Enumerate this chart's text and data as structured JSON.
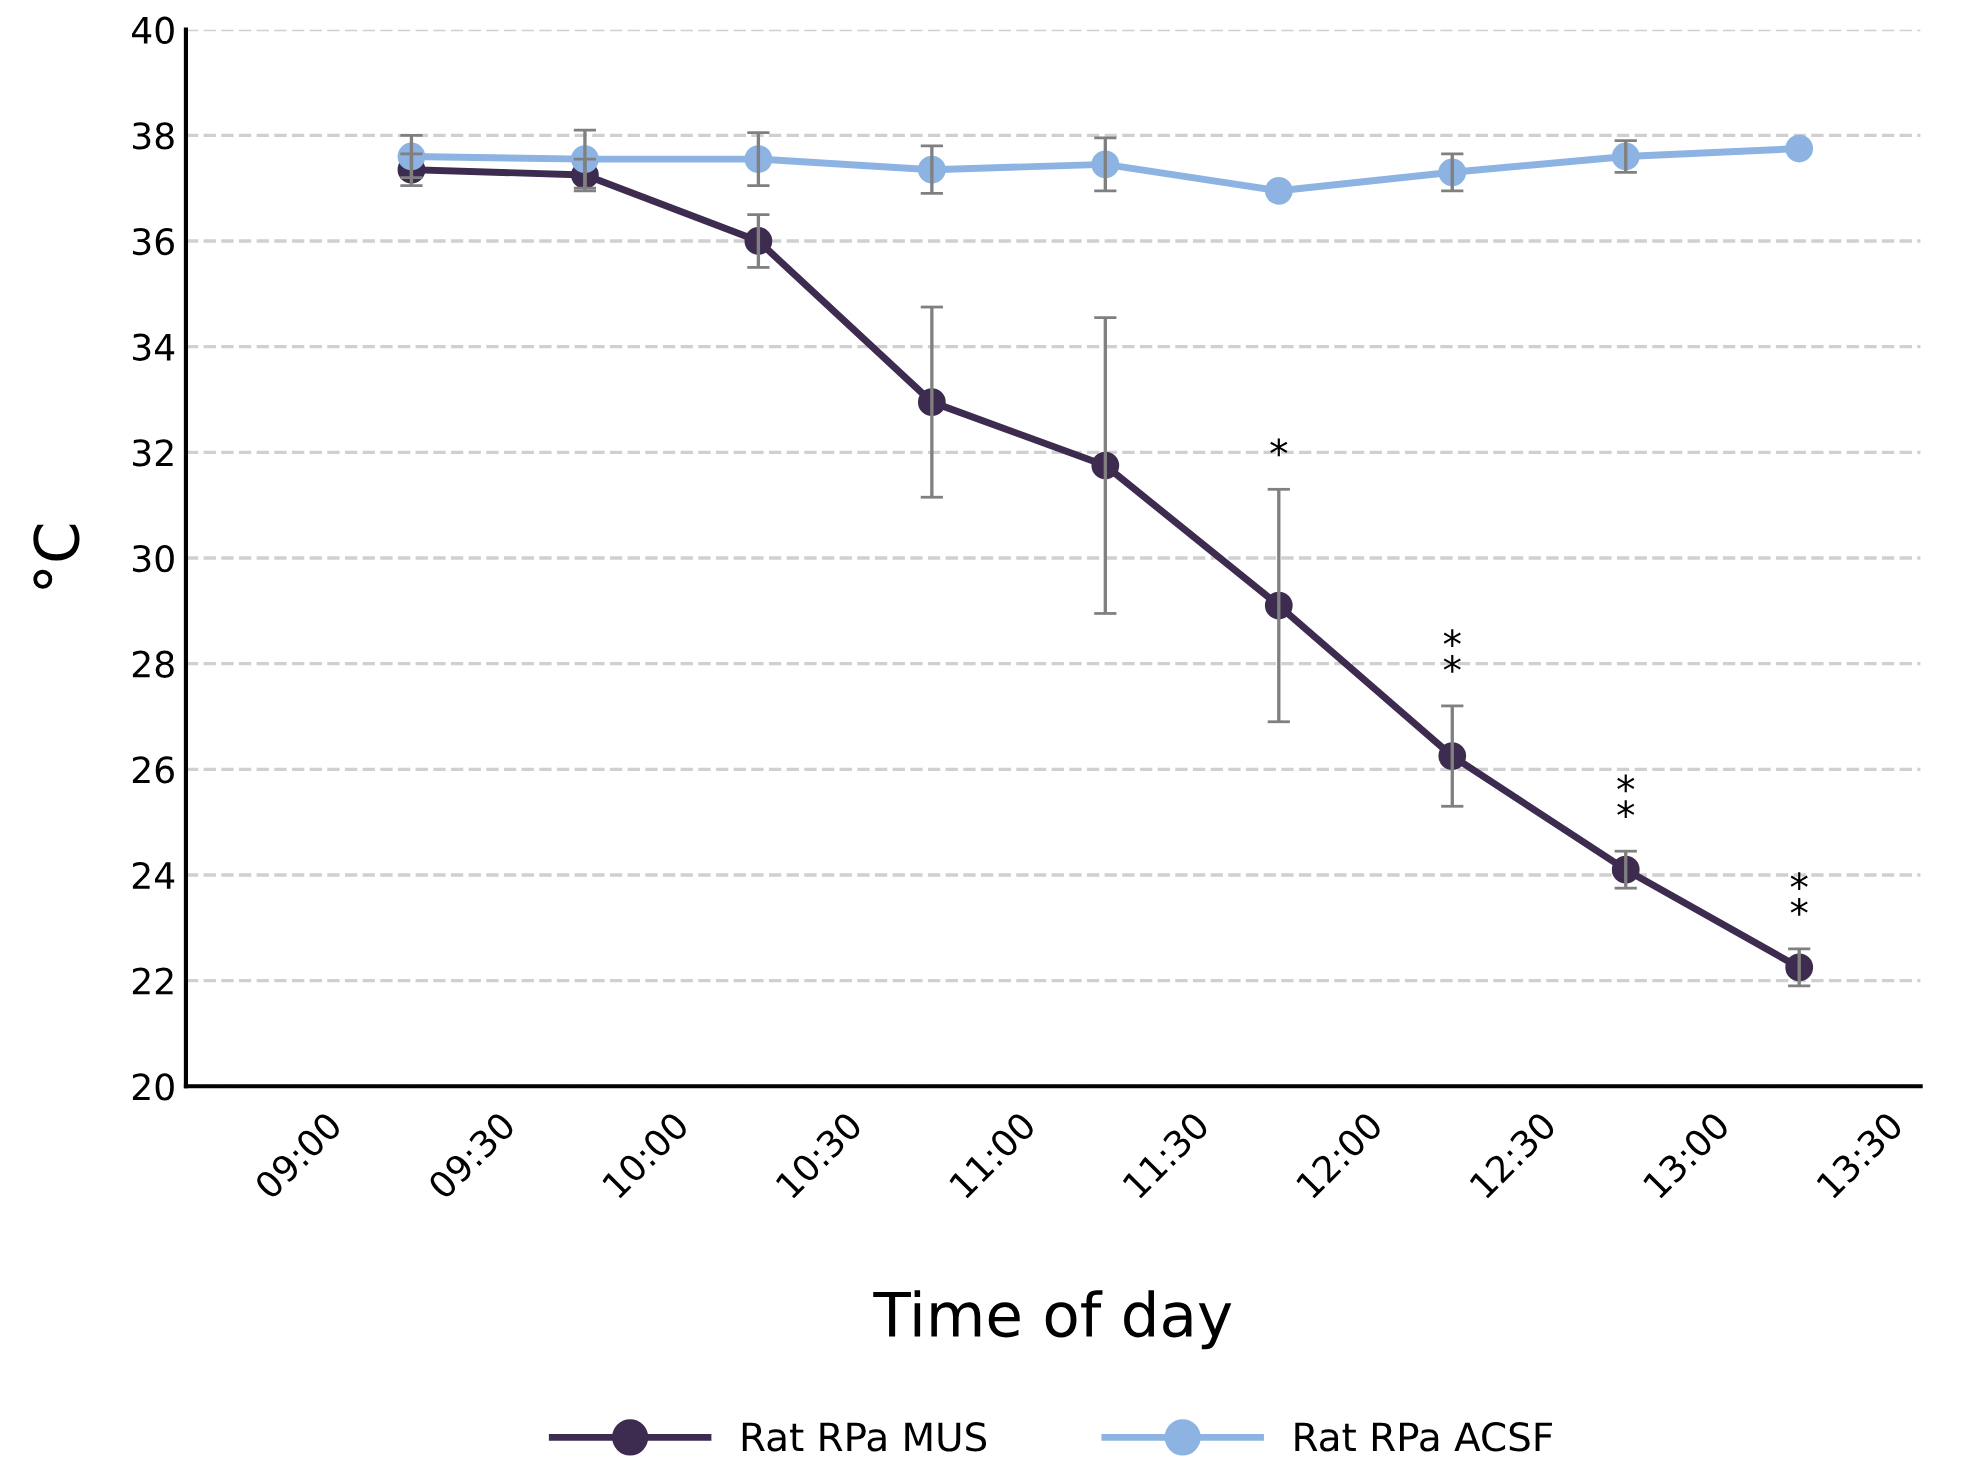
{
  "chart_data": {
    "type": "line",
    "xlabel": "Time of day",
    "ylabel": "°C",
    "x": [
      9.25,
      9.75,
      10.25,
      10.75,
      11.25,
      11.75,
      12.25,
      12.75,
      13.25
    ],
    "series": [
      {
        "name": "Rat RPa MUS",
        "color": "#3d2b50",
        "values": [
          37.35,
          37.25,
          36.0,
          32.95,
          31.75,
          29.1,
          26.25,
          24.1,
          22.25
        ],
        "errors": [
          0.3,
          0.3,
          0.5,
          1.8,
          2.8,
          2.2,
          0.95,
          0.35,
          0.35
        ]
      },
      {
        "name": "Rat RPa ACSF",
        "color": "#8db3e2",
        "values": [
          37.6,
          37.55,
          37.55,
          37.35,
          37.45,
          36.95,
          37.3,
          37.6,
          37.75
        ],
        "errors": [
          0.4,
          0.55,
          0.5,
          0.45,
          0.5,
          null,
          0.35,
          0.3,
          null
        ]
      }
    ],
    "xlim": [
      8.6,
      13.6
    ],
    "xticks": [
      {
        "value": 9.0,
        "label": "09:00"
      },
      {
        "value": 9.5,
        "label": "09:30"
      },
      {
        "value": 10.0,
        "label": "10:00"
      },
      {
        "value": 10.5,
        "label": "10:30"
      },
      {
        "value": 11.0,
        "label": "11:00"
      },
      {
        "value": 11.5,
        "label": "11:30"
      },
      {
        "value": 12.0,
        "label": "12:00"
      },
      {
        "value": 12.5,
        "label": "12:30"
      },
      {
        "value": 13.0,
        "label": "13:00"
      },
      {
        "value": 13.5,
        "label": "13:30"
      }
    ],
    "ylim": [
      20,
      40
    ],
    "yticks": [
      20,
      22,
      24,
      26,
      28,
      30,
      32,
      34,
      36,
      38,
      40
    ],
    "annotations": [
      {
        "text": "*",
        "x": 11.75,
        "y": 31.3
      },
      {
        "text": "*\n*",
        "x": 12.25,
        "y": 27.2
      },
      {
        "text": "*\n*",
        "x": 12.75,
        "y": 24.45
      },
      {
        "text": "*\n*",
        "x": 13.25,
        "y": 22.6
      }
    ],
    "grid": "y",
    "legend": "bottom",
    "marker": "circle",
    "line_style": "solid"
  }
}
